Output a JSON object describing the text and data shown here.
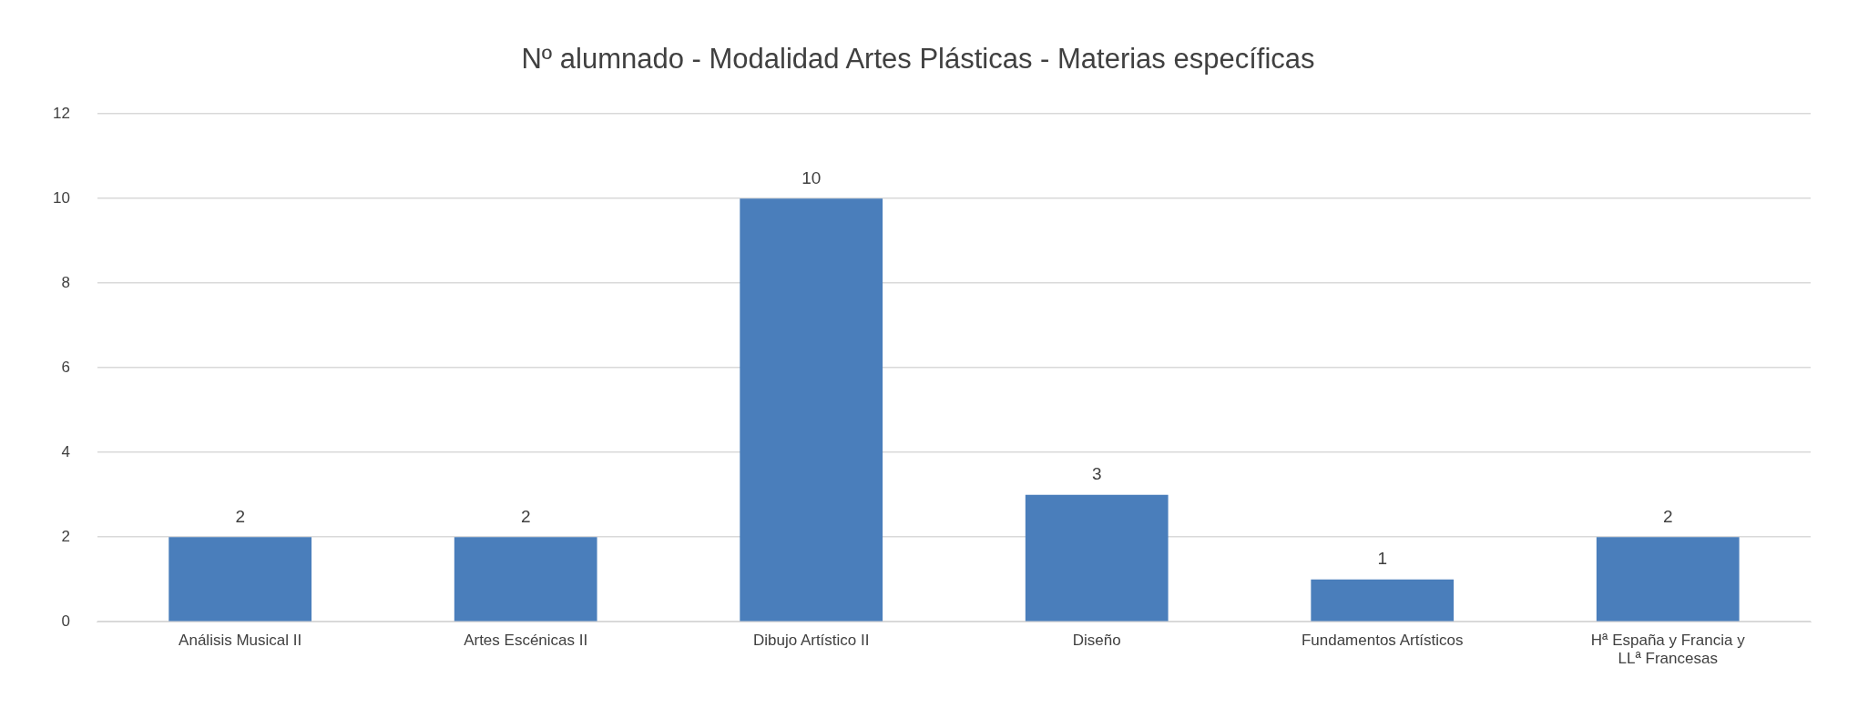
{
  "chart_data": {
    "type": "bar",
    "title": "Nº alumnado - Modalidad Artes Plásticas - Materias específicas",
    "categories": [
      "Análisis Musical II",
      "Artes Escénicas II",
      "Dibujo Artístico II",
      "Diseño",
      "Fundamentos Artísticos",
      "Hª España y Francia y LLª Francesas"
    ],
    "values": [
      2,
      2,
      10,
      3,
      1,
      2
    ],
    "color": "#4a7ebb",
    "ylim": [
      0,
      12
    ],
    "yticks": [
      0,
      2,
      4,
      6,
      8,
      10,
      12
    ],
    "grid": "y",
    "data_labels": true,
    "legend": false
  }
}
